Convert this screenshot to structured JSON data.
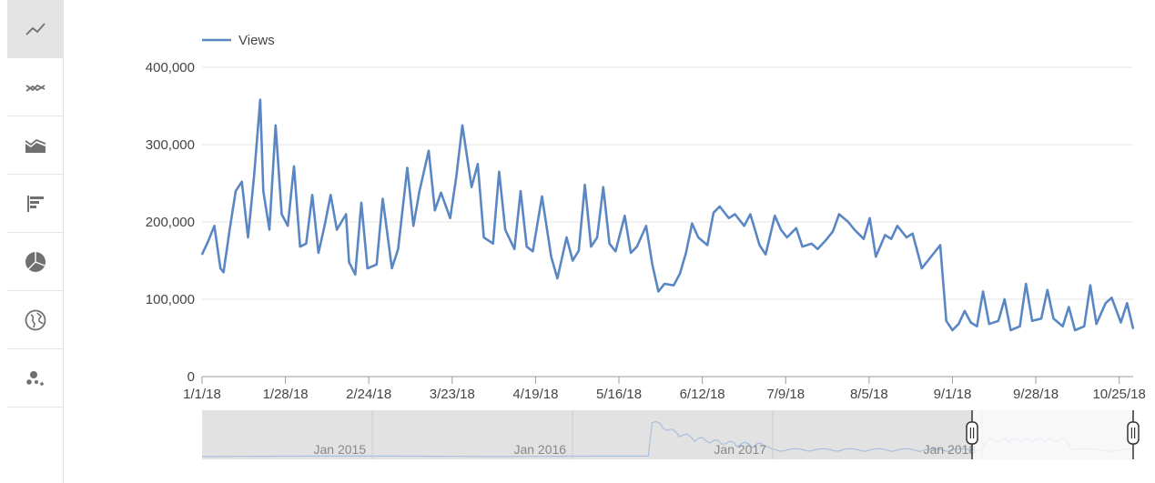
{
  "sidebar": {
    "items": [
      {
        "name": "line-chart",
        "icon": "line-chart-icon",
        "active": true
      },
      {
        "name": "multi-line-chart",
        "icon": "multi-line-chart-icon",
        "active": false
      },
      {
        "name": "stacked-area-chart",
        "icon": "stacked-area-chart-icon",
        "active": false
      },
      {
        "name": "bar-chart",
        "icon": "bar-chart-icon",
        "active": false
      },
      {
        "name": "pie-chart",
        "icon": "pie-chart-icon",
        "active": false
      },
      {
        "name": "geo-map",
        "icon": "globe-icon",
        "active": false
      },
      {
        "name": "bubble-chart",
        "icon": "bubble-chart-icon",
        "active": false
      }
    ]
  },
  "colors": {
    "line": "#5a87c4",
    "grid": "#e6e6e6",
    "axis": "#9e9e9e",
    "navigator_bg": "#e2e2e2",
    "navigator_line": "#a9bfdd"
  },
  "chart_data": {
    "type": "line",
    "legend": {
      "label": "Views",
      "position": "top-left"
    },
    "grid": true,
    "ylim": [
      0,
      400000
    ],
    "y_ticks": [
      "0",
      "100,000",
      "200,000",
      "300,000",
      "400,000"
    ],
    "y_tick_values": [
      0,
      100000,
      200000,
      300000,
      400000
    ],
    "x_ticks": [
      "1/1/18",
      "1/28/18",
      "2/24/18",
      "3/23/18",
      "4/19/18",
      "5/16/18",
      "6/12/18",
      "7/9/18",
      "8/5/18",
      "9/1/18",
      "9/28/18",
      "10/25/18"
    ],
    "x_range": [
      "2018-01-01",
      "2018-11-01"
    ],
    "series": [
      {
        "name": "Views",
        "x": [
          "2018-01-01",
          "2018-01-03",
          "2018-01-05",
          "2018-01-07",
          "2018-01-08",
          "2018-01-10",
          "2018-01-12",
          "2018-01-14",
          "2018-01-16",
          "2018-01-18",
          "2018-01-20",
          "2018-01-21",
          "2018-01-23",
          "2018-01-25",
          "2018-01-27",
          "2018-01-29",
          "2018-01-31",
          "2018-02-02",
          "2018-02-04",
          "2018-02-06",
          "2018-02-08",
          "2018-02-10",
          "2018-02-12",
          "2018-02-14",
          "2018-02-17",
          "2018-02-18",
          "2018-02-20",
          "2018-02-22",
          "2018-02-24",
          "2018-02-27",
          "2018-03-01",
          "2018-03-04",
          "2018-03-06",
          "2018-03-09",
          "2018-03-11",
          "2018-03-13",
          "2018-03-16",
          "2018-03-18",
          "2018-03-20",
          "2018-03-23",
          "2018-03-25",
          "2018-03-27",
          "2018-03-30",
          "2018-04-01",
          "2018-04-03",
          "2018-04-06",
          "2018-04-08",
          "2018-04-10",
          "2018-04-13",
          "2018-04-15",
          "2018-04-17",
          "2018-04-19",
          "2018-04-22",
          "2018-04-25",
          "2018-04-27",
          "2018-04-30",
          "2018-05-02",
          "2018-05-04",
          "2018-05-06",
          "2018-05-08",
          "2018-05-10",
          "2018-05-12",
          "2018-05-14",
          "2018-05-16",
          "2018-05-19",
          "2018-05-21",
          "2018-05-23",
          "2018-05-26",
          "2018-05-28",
          "2018-05-30",
          "2018-06-01",
          "2018-06-04",
          "2018-06-06",
          "2018-06-08",
          "2018-06-10",
          "2018-06-12",
          "2018-06-15",
          "2018-06-17",
          "2018-06-19",
          "2018-06-22",
          "2018-06-24",
          "2018-06-27",
          "2018-06-29",
          "2018-07-02",
          "2018-07-04",
          "2018-07-07",
          "2018-07-09",
          "2018-07-11",
          "2018-07-14",
          "2018-07-16",
          "2018-07-19",
          "2018-07-21",
          "2018-07-24",
          "2018-07-26",
          "2018-07-28",
          "2018-07-31",
          "2018-08-02",
          "2018-08-05",
          "2018-08-07",
          "2018-08-09",
          "2018-08-12",
          "2018-08-14",
          "2018-08-16",
          "2018-08-19",
          "2018-08-21",
          "2018-08-24",
          "2018-08-26",
          "2018-08-28",
          "2018-08-30",
          "2018-09-01",
          "2018-09-03",
          "2018-09-05",
          "2018-09-07",
          "2018-09-09",
          "2018-09-11",
          "2018-09-13",
          "2018-09-15",
          "2018-09-18",
          "2018-09-20",
          "2018-09-22",
          "2018-09-25",
          "2018-09-27",
          "2018-09-29",
          "2018-10-02",
          "2018-10-04",
          "2018-10-06",
          "2018-10-09",
          "2018-10-11",
          "2018-10-13",
          "2018-10-16",
          "2018-10-18",
          "2018-10-20",
          "2018-10-23",
          "2018-10-25",
          "2018-10-28",
          "2018-10-30",
          "2018-11-01"
        ],
        "values": [
          158000,
          175000,
          195000,
          140000,
          135000,
          190000,
          240000,
          252000,
          180000,
          260000,
          358000,
          240000,
          190000,
          325000,
          210000,
          195000,
          272000,
          168000,
          172000,
          235000,
          160000,
          195000,
          235000,
          190000,
          210000,
          148000,
          132000,
          225000,
          140000,
          145000,
          230000,
          140000,
          165000,
          270000,
          195000,
          240000,
          292000,
          215000,
          238000,
          205000,
          258000,
          325000,
          245000,
          275000,
          180000,
          172000,
          265000,
          190000,
          165000,
          240000,
          168000,
          162000,
          233000,
          155000,
          127000,
          180000,
          150000,
          163000,
          248000,
          168000,
          180000,
          245000,
          172000,
          162000,
          208000,
          160000,
          168000,
          195000,
          145000,
          110000,
          120000,
          118000,
          133000,
          160000,
          198000,
          180000,
          170000,
          212000,
          220000,
          205000,
          210000,
          195000,
          210000,
          170000,
          158000,
          208000,
          190000,
          180000,
          192000,
          168000,
          172000,
          165000,
          178000,
          188000,
          210000,
          200000,
          190000,
          178000,
          205000,
          155000,
          183000,
          178000,
          195000,
          180000,
          185000,
          140000,
          150000,
          160000,
          170000,
          72000,
          60000,
          68000,
          85000,
          70000,
          65000,
          110000,
          68000,
          72000,
          100000,
          60000,
          65000,
          120000,
          72000,
          75000,
          112000,
          75000,
          65000,
          90000,
          60000,
          65000,
          118000,
          68000,
          95000,
          102000,
          70000,
          95000,
          62000
        ]
      }
    ],
    "navigator": {
      "labels": [
        "Jan 2015",
        "Jan 2016",
        "Jan 2017",
        "Jan 2018"
      ]
    }
  }
}
